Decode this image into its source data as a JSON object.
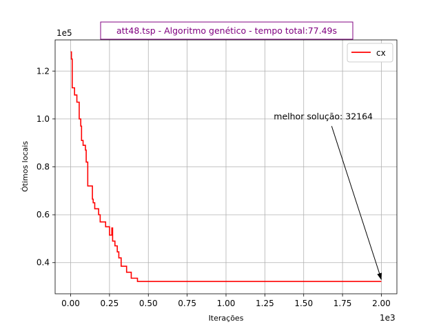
{
  "chart_data": {
    "type": "line",
    "title": "att48.tsp - Algoritmo genético - tempo total:77.49s",
    "xlabel": "Iterações",
    "ylabel": "Ótimos locais",
    "x_offset_label": "1e3",
    "y_offset_label": "1e5",
    "xlim": [
      -0.1,
      2.1
    ],
    "ylim": [
      0.27,
      1.33
    ],
    "xticks": [
      0.0,
      0.25,
      0.5,
      0.75,
      1.0,
      1.25,
      1.5,
      1.75,
      2.0
    ],
    "xtick_labels": [
      "0.00",
      "0.25",
      "0.50",
      "0.75",
      "1.00",
      "1.25",
      "1.50",
      "1.75",
      "2.00"
    ],
    "yticks": [
      0.4,
      0.6,
      0.8,
      1.0,
      1.2
    ],
    "ytick_labels": [
      "0.4",
      "0.6",
      "0.8",
      "1.0",
      "1.2"
    ],
    "grid": true,
    "legend_position": "top-right",
    "series": [
      {
        "name": "cx",
        "color": "#ff0000",
        "step": true,
        "x": [
          0.0,
          0.005,
          0.01,
          0.025,
          0.04,
          0.055,
          0.065,
          0.07,
          0.08,
          0.095,
          0.1,
          0.11,
          0.14,
          0.145,
          0.155,
          0.18,
          0.19,
          0.225,
          0.25,
          0.265,
          0.27,
          0.285,
          0.3,
          0.31,
          0.325,
          0.36,
          0.39,
          0.41,
          0.43,
          2.0
        ],
        "y": [
          1.28,
          1.25,
          1.13,
          1.1,
          1.07,
          1.0,
          0.97,
          0.91,
          0.89,
          0.87,
          0.82,
          0.72,
          0.665,
          0.65,
          0.625,
          0.6,
          0.57,
          0.55,
          0.515,
          0.545,
          0.49,
          0.47,
          0.445,
          0.42,
          0.385,
          0.36,
          0.335,
          0.335,
          0.3216,
          0.3216
        ]
      }
    ],
    "annotation": {
      "text": "melhor solução: 32164",
      "x": 2.0,
      "y": 0.3216,
      "text_x": 1.68,
      "text_y": 0.97
    }
  }
}
